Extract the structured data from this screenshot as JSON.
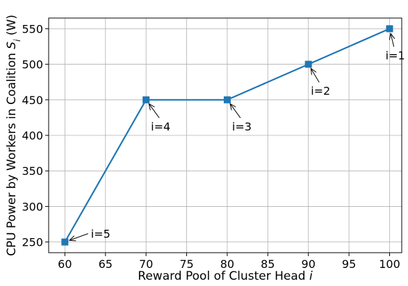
{
  "chart_data": {
    "type": "line",
    "title": "",
    "xlabel_prefix": "Reward Pool of Cluster Head ",
    "xlabel_var": "i",
    "ylabel_prefix": "CPU Power by Workers in Coalition ",
    "ylabel_var": "S",
    "ylabel_sub": "i",
    "ylabel_suffix": " (W)",
    "xlim": [
      58,
      101.5
    ],
    "ylim": [
      235,
      565
    ],
    "x_ticks": [
      60,
      65,
      70,
      75,
      80,
      85,
      90,
      95,
      100
    ],
    "y_ticks": [
      250,
      300,
      350,
      400,
      450,
      500,
      550
    ],
    "grid": true,
    "series": [
      {
        "x": [
          60,
          70,
          80,
          90,
          100
        ],
        "y": [
          250,
          450,
          450,
          500,
          550
        ],
        "color": "#1f77b4",
        "marker": "square"
      }
    ],
    "annotations": [
      {
        "text": "i=5",
        "x": 60,
        "y": 250,
        "text_anchor_x": 63.2,
        "text_anchor_y": 256
      },
      {
        "text": "i=4",
        "x": 70,
        "y": 450,
        "text_anchor_x": 70.6,
        "text_anchor_y": 407
      },
      {
        "text": "i=3",
        "x": 80,
        "y": 450,
        "text_anchor_x": 80.6,
        "text_anchor_y": 407
      },
      {
        "text": "i=2",
        "x": 90,
        "y": 500,
        "text_anchor_x": 90.3,
        "text_anchor_y": 457
      },
      {
        "text": "i=1",
        "x": 100,
        "y": 550,
        "text_anchor_x": 99.5,
        "text_anchor_y": 507
      }
    ]
  }
}
